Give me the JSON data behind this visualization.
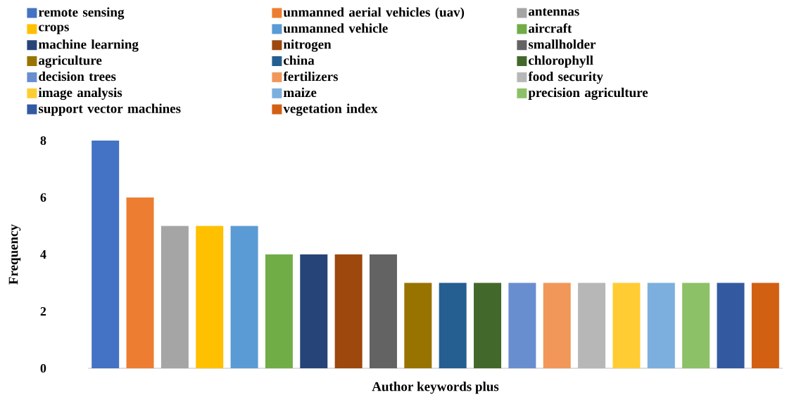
{
  "chart_data": {
    "type": "bar",
    "xlabel": "Author keywords plus",
    "ylabel": "Frequency",
    "categories": [
      null,
      null,
      null,
      null,
      null,
      null,
      null,
      null,
      null,
      null,
      null,
      null,
      null,
      null,
      null,
      null,
      null,
      null,
      null,
      null
    ],
    "ylim": [
      0,
      8
    ],
    "yticks": [
      0,
      2,
      4,
      6,
      8
    ],
    "tick_labels": "y",
    "legend": "top",
    "series": [
      {
        "name": "remote sensing",
        "color": "#4472c4",
        "values": [
          8,
          null,
          null,
          null,
          null,
          null,
          null,
          null,
          null,
          null,
          null,
          null,
          null,
          null,
          null,
          null,
          null,
          null,
          null,
          null
        ]
      },
      {
        "name": "unmanned aerial vehicles (uav)",
        "color": "#ed7d31",
        "values": [
          null,
          6,
          null,
          null,
          null,
          null,
          null,
          null,
          null,
          null,
          null,
          null,
          null,
          null,
          null,
          null,
          null,
          null,
          null,
          null
        ]
      },
      {
        "name": "antennas",
        "color": "#a5a5a5",
        "values": [
          null,
          null,
          5,
          null,
          null,
          null,
          null,
          null,
          null,
          null,
          null,
          null,
          null,
          null,
          null,
          null,
          null,
          null,
          null,
          null
        ]
      },
      {
        "name": "crops",
        "color": "#ffc000",
        "values": [
          null,
          null,
          null,
          5,
          null,
          null,
          null,
          null,
          null,
          null,
          null,
          null,
          null,
          null,
          null,
          null,
          null,
          null,
          null,
          null
        ]
      },
      {
        "name": "unmanned vehicle",
        "color": "#5b9bd5",
        "values": [
          null,
          null,
          null,
          null,
          5,
          null,
          null,
          null,
          null,
          null,
          null,
          null,
          null,
          null,
          null,
          null,
          null,
          null,
          null,
          null
        ]
      },
      {
        "name": "aircraft",
        "color": "#70ad47",
        "values": [
          null,
          null,
          null,
          null,
          null,
          4,
          null,
          null,
          null,
          null,
          null,
          null,
          null,
          null,
          null,
          null,
          null,
          null,
          null,
          null
        ]
      },
      {
        "name": "machine learning",
        "color": "#264478",
        "values": [
          null,
          null,
          null,
          null,
          null,
          null,
          4,
          null,
          null,
          null,
          null,
          null,
          null,
          null,
          null,
          null,
          null,
          null,
          null,
          null
        ]
      },
      {
        "name": "nitrogen",
        "color": "#9e480e",
        "values": [
          null,
          null,
          null,
          null,
          null,
          null,
          null,
          4,
          null,
          null,
          null,
          null,
          null,
          null,
          null,
          null,
          null,
          null,
          null,
          null
        ]
      },
      {
        "name": "smallholder",
        "color": "#636363",
        "values": [
          null,
          null,
          null,
          null,
          null,
          null,
          null,
          null,
          4,
          null,
          null,
          null,
          null,
          null,
          null,
          null,
          null,
          null,
          null,
          null
        ]
      },
      {
        "name": "agriculture",
        "color": "#997300",
        "values": [
          null,
          null,
          null,
          null,
          null,
          null,
          null,
          null,
          null,
          3,
          null,
          null,
          null,
          null,
          null,
          null,
          null,
          null,
          null,
          null
        ]
      },
      {
        "name": "china",
        "color": "#255e91",
        "values": [
          null,
          null,
          null,
          null,
          null,
          null,
          null,
          null,
          null,
          null,
          3,
          null,
          null,
          null,
          null,
          null,
          null,
          null,
          null,
          null
        ]
      },
      {
        "name": "chlorophyll",
        "color": "#43682b",
        "values": [
          null,
          null,
          null,
          null,
          null,
          null,
          null,
          null,
          null,
          null,
          null,
          3,
          null,
          null,
          null,
          null,
          null,
          null,
          null,
          null
        ]
      },
      {
        "name": "decision trees",
        "color": "#698ed0",
        "values": [
          null,
          null,
          null,
          null,
          null,
          null,
          null,
          null,
          null,
          null,
          null,
          null,
          3,
          null,
          null,
          null,
          null,
          null,
          null,
          null
        ]
      },
      {
        "name": "fertilizers",
        "color": "#f1975a",
        "values": [
          null,
          null,
          null,
          null,
          null,
          null,
          null,
          null,
          null,
          null,
          null,
          null,
          null,
          3,
          null,
          null,
          null,
          null,
          null,
          null
        ]
      },
      {
        "name": "food security",
        "color": "#b7b7b7",
        "values": [
          null,
          null,
          null,
          null,
          null,
          null,
          null,
          null,
          null,
          null,
          null,
          null,
          null,
          null,
          3,
          null,
          null,
          null,
          null,
          null
        ]
      },
      {
        "name": "image analysis",
        "color": "#ffcd33",
        "values": [
          null,
          null,
          null,
          null,
          null,
          null,
          null,
          null,
          null,
          null,
          null,
          null,
          null,
          null,
          null,
          3,
          null,
          null,
          null,
          null
        ]
      },
      {
        "name": "maize",
        "color": "#7cafdd",
        "values": [
          null,
          null,
          null,
          null,
          null,
          null,
          null,
          null,
          null,
          null,
          null,
          null,
          null,
          null,
          null,
          null,
          3,
          null,
          null,
          null
        ]
      },
      {
        "name": "precision agriculture",
        "color": "#8cc168",
        "values": [
          null,
          null,
          null,
          null,
          null,
          null,
          null,
          null,
          null,
          null,
          null,
          null,
          null,
          null,
          null,
          null,
          null,
          3,
          null,
          null
        ]
      },
      {
        "name": "support vector machines",
        "color": "#335aa1",
        "values": [
          null,
          null,
          null,
          null,
          null,
          null,
          null,
          null,
          null,
          null,
          null,
          null,
          null,
          null,
          null,
          null,
          null,
          null,
          3,
          null
        ]
      },
      {
        "name": "vegetation index",
        "color": "#d26012",
        "values": [
          null,
          null,
          null,
          null,
          null,
          null,
          null,
          null,
          null,
          null,
          null,
          null,
          null,
          null,
          null,
          null,
          null,
          null,
          null,
          3
        ]
      }
    ]
  }
}
